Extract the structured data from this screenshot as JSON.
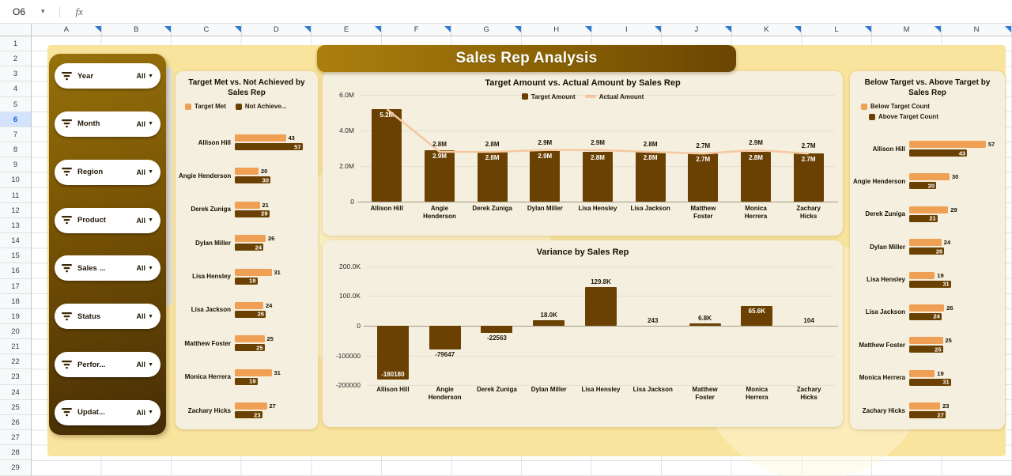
{
  "icons": {
    "name_box_caret": "▾",
    "filter_caret": "▼"
  },
  "spreadsheet": {
    "name_box_value": "O6",
    "formula_label": "fx",
    "column_headers": [
      "A",
      "B",
      "C",
      "D",
      "E",
      "F",
      "G",
      "H",
      "I",
      "J",
      "K",
      "L",
      "M",
      "N"
    ],
    "row_count": 30,
    "selected_row": 6
  },
  "dashboard": {
    "title": "Sales Rep Analysis",
    "filters": [
      {
        "label": "Year",
        "value": "All"
      },
      {
        "label": "Month",
        "value": "All"
      },
      {
        "label": "Region",
        "value": "All"
      },
      {
        "label": "Product",
        "value": "All"
      },
      {
        "label": "Sales ...",
        "value": "All"
      },
      {
        "label": "Status",
        "value": "All"
      },
      {
        "label": "Perfor...",
        "value": "All"
      },
      {
        "label": "Updat...",
        "value": "All"
      }
    ]
  },
  "colors": {
    "dashboard_bg": "#f9e49e",
    "panel_bg": "#f5efdf",
    "dark_brown": "#6b4103",
    "light_orange": "#efa055",
    "line_peach": "#f5c8a0",
    "banner_start": "#ab7f0e",
    "banner_end": "#6b4503",
    "header_triangle": "#2f7bd3"
  },
  "chart_data": [
    {
      "id": "target-met-vs-not-achieved",
      "type": "bar",
      "orientation": "horizontal",
      "title": "Target Met vs. Not Achieved by Sales Rep",
      "legend": [
        {
          "label": "Target Met",
          "marker": "light"
        },
        {
          "label": "Not Achieve...",
          "marker": "dark"
        }
      ],
      "categories": [
        "Allison Hill",
        "Angie Henderson",
        "Derek Zuniga",
        "Dylan Miller",
        "Lisa Hensley",
        "Lisa Jackson",
        "Matthew Foster",
        "Monica Herrera",
        "Zachary Hicks"
      ],
      "series": [
        {
          "name": "Target Met",
          "values": [
            43,
            20,
            21,
            26,
            31,
            24,
            25,
            31,
            27
          ]
        },
        {
          "name": "Not Achieved",
          "values": [
            57,
            30,
            29,
            24,
            19,
            26,
            25,
            19,
            23
          ]
        }
      ]
    },
    {
      "id": "target-vs-actual-amount",
      "type": "combo",
      "title": "Target Amount vs. Actual Amount by Sales Rep",
      "legend": [
        {
          "label": "Target Amount",
          "marker": "dark"
        },
        {
          "label": "Actual Amount",
          "marker": "line"
        }
      ],
      "categories": [
        "Allison Hill",
        "Angie Henderson",
        "Derek Zuniga",
        "Dylan Miller",
        "Lisa Hensley",
        "Lisa Jackson",
        "Matthew Foster",
        "Monica Herrera",
        "Zachary Hicks"
      ],
      "y_ticks": [
        "6.0M",
        "4.0M",
        "2.0M",
        "0"
      ],
      "ylim_millions": [
        0,
        6
      ],
      "series": [
        {
          "name": "Target Amount",
          "kind": "bar",
          "values_m": [
            5.2,
            2.9,
            2.8,
            2.9,
            2.8,
            2.8,
            2.7,
            2.8,
            2.7
          ],
          "labels": [
            "5.2M",
            "2.9M",
            "2.8M",
            "2.9M",
            "2.8M",
            "2.8M",
            "2.7M",
            "2.8M",
            "2.7M"
          ]
        },
        {
          "name": "Actual Amount",
          "kind": "line",
          "values_m": [
            5.2,
            2.8,
            2.8,
            2.9,
            2.9,
            2.8,
            2.7,
            2.9,
            2.7
          ],
          "labels": [
            "",
            "2.8M",
            "2.8M",
            "2.9M",
            "2.9M",
            "2.8M",
            "2.7M",
            "2.9M",
            "2.7M"
          ]
        }
      ]
    },
    {
      "id": "variance-by-sales-rep",
      "type": "bar",
      "title": "Variance by Sales Rep",
      "categories": [
        "Allison Hill",
        "Angie Henderson",
        "Derek Zuniga",
        "Dylan Miller",
        "Lisa Hensley",
        "Lisa Jackson",
        "Matthew Foster",
        "Monica Herrera",
        "Zachary Hicks"
      ],
      "values": [
        -180180,
        -79647,
        -22563,
        18000,
        129800,
        243,
        6800,
        65600,
        104
      ],
      "labels": [
        "-180180",
        "-79647",
        "-22563",
        "18.0K",
        "129.8K",
        "243",
        "6.8K",
        "65.6K",
        "104"
      ],
      "label_pos": [
        "inside-bottom",
        "below",
        "below",
        "above",
        "above",
        "above",
        "above",
        "inside-top",
        "above"
      ],
      "y_ticks": [
        "200.0K",
        "100.0K",
        "0",
        "-100000",
        "-200000"
      ],
      "ylim": [
        -200000,
        200000
      ]
    },
    {
      "id": "below-vs-above-target",
      "type": "bar",
      "orientation": "horizontal",
      "title": "Below Target vs. Above Target by Sales Rep",
      "legend": [
        {
          "label": "Below Target Count",
          "marker": "light"
        },
        {
          "label": "Above Target Count",
          "marker": "dark"
        }
      ],
      "categories": [
        "Allison Hill",
        "Angie Henderson",
        "Derek Zuniga",
        "Dylan Miller",
        "Lisa Hensley",
        "Lisa Jackson",
        "Matthew Foster",
        "Monica Herrera",
        "Zachary Hicks"
      ],
      "series": [
        {
          "name": "Below Target Count",
          "values": [
            57,
            30,
            29,
            24,
            19,
            26,
            25,
            19,
            23
          ]
        },
        {
          "name": "Above Target Count",
          "values": [
            43,
            20,
            21,
            26,
            31,
            24,
            25,
            31,
            27
          ]
        }
      ]
    }
  ]
}
